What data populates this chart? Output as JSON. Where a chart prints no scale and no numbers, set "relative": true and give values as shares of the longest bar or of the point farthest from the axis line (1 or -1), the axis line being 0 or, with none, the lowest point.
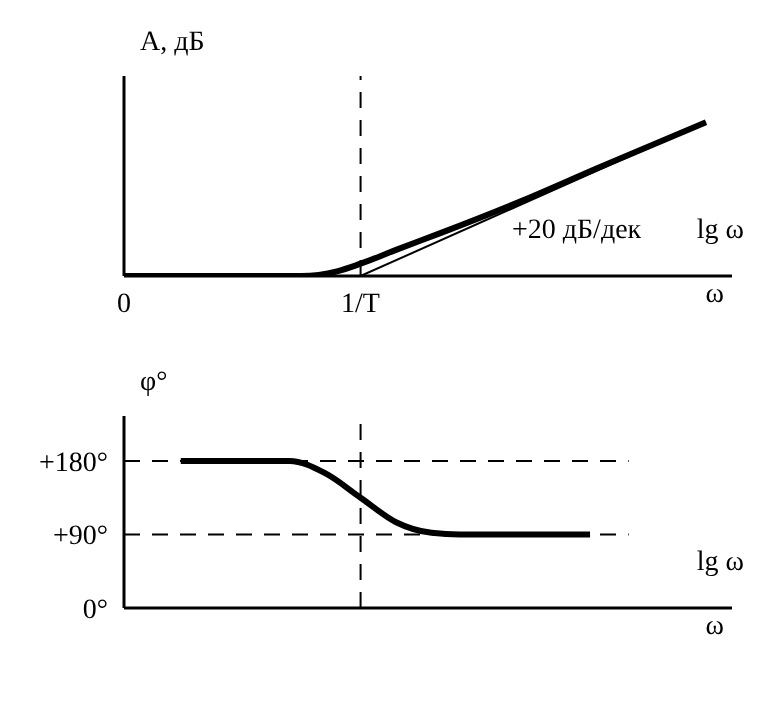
{
  "chart_data": [
    {
      "type": "line",
      "ylabel": "A, дБ",
      "relative": true,
      "tick_labels": "x",
      "grid": false,
      "legend": false,
      "marker": "none",
      "xlim": [
        0,
        2.57
      ],
      "xticks": [
        {
          "value": 0,
          "label": "0"
        },
        {
          "value": 1,
          "label": "1/T"
        }
      ],
      "series": [
        {
          "color": "#000000",
          "x": [
            0,
            0.75,
            0.9,
            1,
            1.15,
            1.34,
            1.7,
            2.0,
            2.46
          ],
          "values": [
            0,
            0,
            0.03,
            0.08,
            0.17,
            0.28,
            0.5,
            0.7,
            1
          ]
        },
        {
          "color": "#000000",
          "x": [
            1,
            2.46
          ],
          "values": [
            0,
            1
          ]
        }
      ],
      "ref_lines": [
        {
          "axis": "x",
          "value": 1,
          "line_style": "dashed",
          "color": "#000000"
        }
      ],
      "annotations": [
        "+20 дБ/дек",
        "lg ω",
        "ω"
      ]
    },
    {
      "type": "line",
      "ylabel": "φ°",
      "tick_labels": "y",
      "grid": false,
      "legend": false,
      "marker": "none",
      "xlim": [
        0,
        2.57
      ],
      "ylim": [
        0,
        235
      ],
      "yticks": [
        {
          "value": 0,
          "label": "0°"
        },
        {
          "value": 90,
          "label": "+90°"
        },
        {
          "value": 180,
          "label": "+180°"
        }
      ],
      "series": [
        {
          "color": "#000000",
          "x": [
            0.24,
            0.7,
            0.85,
            1,
            1.15,
            1.3,
            1.42,
            1.97
          ],
          "values": [
            180,
            180,
            165,
            135,
            105,
            92,
            90,
            90
          ]
        }
      ],
      "ref_lines": [
        {
          "axis": "x",
          "value": 1,
          "line_style": "dashed",
          "color": "#000000"
        },
        {
          "axis": "y",
          "value": 180,
          "line_style": "dashed",
          "color": "#000000"
        },
        {
          "axis": "y",
          "value": 90,
          "line_style": "dashed",
          "color": "#000000"
        }
      ],
      "annotations": [
        "lg ω",
        "ω"
      ]
    }
  ]
}
